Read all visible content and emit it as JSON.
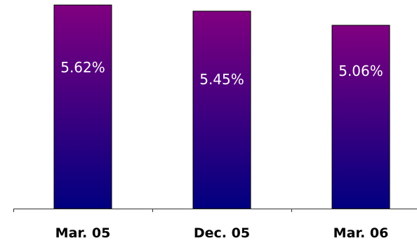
{
  "chart_data": {
    "type": "bar",
    "categories": [
      "Mar. 05",
      "Dec. 05",
      "Mar. 06"
    ],
    "values": [
      5.62,
      5.45,
      5.06
    ],
    "data_labels": [
      "5.62%",
      "5.45%",
      "5.06%"
    ],
    "title": "",
    "xlabel": "",
    "ylabel": "",
    "ylim": [
      0,
      5.7
    ],
    "grid": false,
    "legend": "none",
    "colors": {
      "bar_top": "#800080",
      "bar_bottom": "#000080",
      "bar_outline": "#000000",
      "axis": "#333333",
      "label_text": "#ffffff"
    }
  }
}
